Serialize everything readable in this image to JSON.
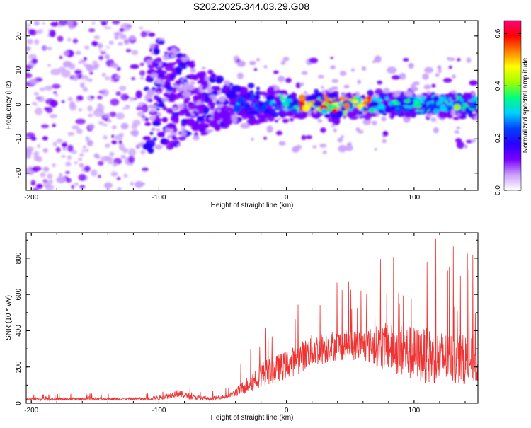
{
  "title": "S202.2025.344.03.29.G08",
  "chart_data": [
    {
      "type": "heatmap",
      "xlabel": "Height of straight line (km)",
      "ylabel": "Frequency (Hz)",
      "xlim": [
        -204,
        150
      ],
      "ylim": [
        -25,
        24.5
      ],
      "xticks": [
        -200,
        -100,
        0,
        100
      ],
      "yticks": [
        -20,
        -10,
        0,
        10,
        20
      ],
      "colorbar": {
        "label": "Normalized spectral amplitude",
        "range": [
          0,
          0.65
        ],
        "ticks": [
          "0.0",
          "0.2",
          "0.4",
          "0.6"
        ],
        "tick_values": [
          0,
          0.2,
          0.4,
          0.6
        ],
        "colors": [
          "#ffffff",
          "#c9a0ff",
          "#7a00ff",
          "#2a00ff",
          "#0040ff",
          "#00d0ff",
          "#00ff80",
          "#a0ff00",
          "#ffff00",
          "#ff8000",
          "#ff0000",
          "#ff0080"
        ]
      },
      "band": {
        "description_center_freq_hz": 0,
        "peak_region_km": [
          10,
          70
        ],
        "peak_amplitude": 0.65
      }
    },
    {
      "type": "line",
      "xlabel": "Height of straight line (km)",
      "ylabel": "SNR (10 * v/v)",
      "xlim": [
        -204,
        150
      ],
      "ylim": [
        0,
        940
      ],
      "xticks": [
        -200,
        -100,
        0,
        100
      ],
      "yticks": [
        0,
        200,
        400,
        600,
        800
      ],
      "color": "#ee3333",
      "envelope": {
        "x": [
          -204,
          -110,
          -100,
          -85,
          -75,
          -60,
          -45,
          -35,
          -20,
          0,
          20,
          40,
          60,
          80,
          100,
          120,
          150
        ],
        "mean": [
          22,
          25,
          30,
          55,
          35,
          25,
          40,
          80,
          160,
          210,
          290,
          320,
          320,
          310,
          270,
          250,
          240
        ],
        "spread": [
          12,
          12,
          20,
          35,
          25,
          15,
          20,
          60,
          120,
          130,
          150,
          140,
          140,
          230,
          260,
          250,
          220
        ]
      }
    }
  ]
}
